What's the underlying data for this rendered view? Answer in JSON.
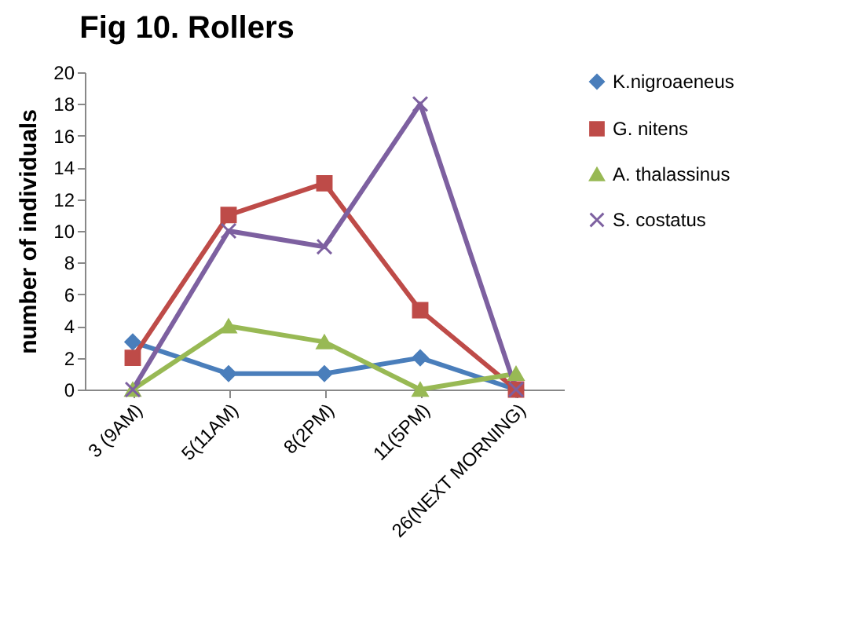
{
  "chart_data": {
    "type": "line",
    "title": "Fig 10. Rollers",
    "ylabel": "number of individuals",
    "categories": [
      "3 (9AM)",
      "5(11AM)",
      "8(2PM)",
      "11(5PM)",
      "26(NEXT MORNING)"
    ],
    "series": [
      {
        "name": "K.nigroaeneus",
        "color": "#4a7ebb",
        "marker": "diamond",
        "values": [
          3,
          1,
          1,
          2,
          0
        ]
      },
      {
        "name": "G. nitens",
        "color": "#be4b48",
        "marker": "square",
        "values": [
          2,
          11,
          13,
          5,
          0
        ]
      },
      {
        "name": "A. thalassinus",
        "color": "#98b954",
        "marker": "triangle",
        "values": [
          0,
          4,
          3,
          0,
          1
        ]
      },
      {
        "name": "S. costatus",
        "color": "#7d60a0",
        "marker": "cross",
        "values": [
          0,
          10,
          9,
          18,
          0
        ]
      }
    ],
    "ylim": [
      0,
      20
    ],
    "yticks": [
      0,
      2,
      4,
      6,
      8,
      10,
      12,
      14,
      16,
      18,
      20
    ],
    "grid": false,
    "legend": "right",
    "line_style": "solid"
  }
}
